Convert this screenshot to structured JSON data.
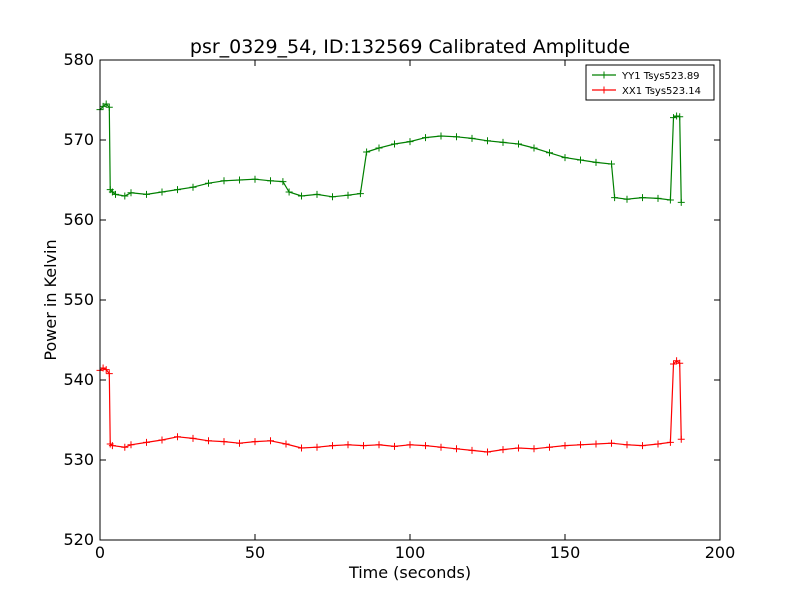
{
  "chart_data": {
    "type": "line",
    "title": "psr_0329_54, ID:132569 Calibrated Amplitude",
    "xlabel": "Time (seconds)",
    "ylabel": "Power in Kelvin",
    "xlim": [
      0,
      200
    ],
    "ylim": [
      520,
      580
    ],
    "xticks": [
      "0",
      "50",
      "100",
      "150",
      "200"
    ],
    "yticks": [
      "520",
      "530",
      "540",
      "550",
      "560",
      "570",
      "580"
    ],
    "marker": "+",
    "legend_position": "top-right",
    "grid": false,
    "series": [
      {
        "name": "YY1 Tsys523.89",
        "color": "#008000",
        "x": [
          0,
          1,
          2,
          3,
          3.3,
          4,
          5,
          8,
          10,
          15,
          20,
          25,
          30,
          35,
          40,
          45,
          50,
          55,
          59,
          61,
          65,
          70,
          75,
          80,
          84,
          86,
          90,
          95,
          100,
          105,
          110,
          115,
          120,
          125,
          130,
          135,
          140,
          145,
          150,
          155,
          160,
          165,
          166,
          170,
          175,
          180,
          184,
          185,
          186,
          187,
          187.5
        ],
        "y": [
          573.8,
          574.2,
          574.5,
          574.1,
          563.8,
          563.5,
          563.2,
          563.0,
          563.4,
          563.2,
          563.5,
          563.8,
          564.1,
          564.6,
          564.9,
          565.0,
          565.1,
          564.9,
          564.8,
          563.5,
          563.0,
          563.2,
          562.9,
          563.1,
          563.3,
          568.5,
          569.0,
          569.5,
          569.8,
          570.3,
          570.5,
          570.4,
          570.2,
          569.9,
          569.7,
          569.5,
          569.0,
          568.4,
          567.8,
          567.5,
          567.2,
          567.0,
          562.8,
          562.6,
          562.8,
          562.7,
          562.5,
          572.8,
          573.0,
          572.9,
          562.2
        ]
      },
      {
        "name": "XX1 Tsys523.14",
        "color": "#ff0000",
        "x": [
          0,
          1,
          2,
          3,
          3.3,
          4,
          8,
          10,
          15,
          20,
          25,
          30,
          35,
          40,
          45,
          50,
          55,
          60,
          65,
          70,
          75,
          80,
          85,
          90,
          95,
          100,
          105,
          110,
          115,
          120,
          125,
          130,
          135,
          140,
          145,
          150,
          155,
          160,
          165,
          170,
          175,
          180,
          184,
          185,
          186,
          187,
          187.5
        ],
        "y": [
          541.2,
          541.5,
          541.3,
          540.8,
          532.0,
          531.8,
          531.6,
          531.9,
          532.2,
          532.5,
          532.9,
          532.7,
          532.4,
          532.3,
          532.1,
          532.3,
          532.4,
          532.0,
          531.5,
          531.6,
          531.8,
          531.9,
          531.8,
          531.9,
          531.7,
          531.9,
          531.8,
          531.6,
          531.4,
          531.2,
          531.0,
          531.3,
          531.5,
          531.4,
          531.6,
          531.8,
          531.9,
          532.0,
          532.1,
          531.9,
          531.8,
          532.0,
          532.2,
          542.0,
          542.4,
          542.1,
          532.6
        ]
      }
    ]
  }
}
